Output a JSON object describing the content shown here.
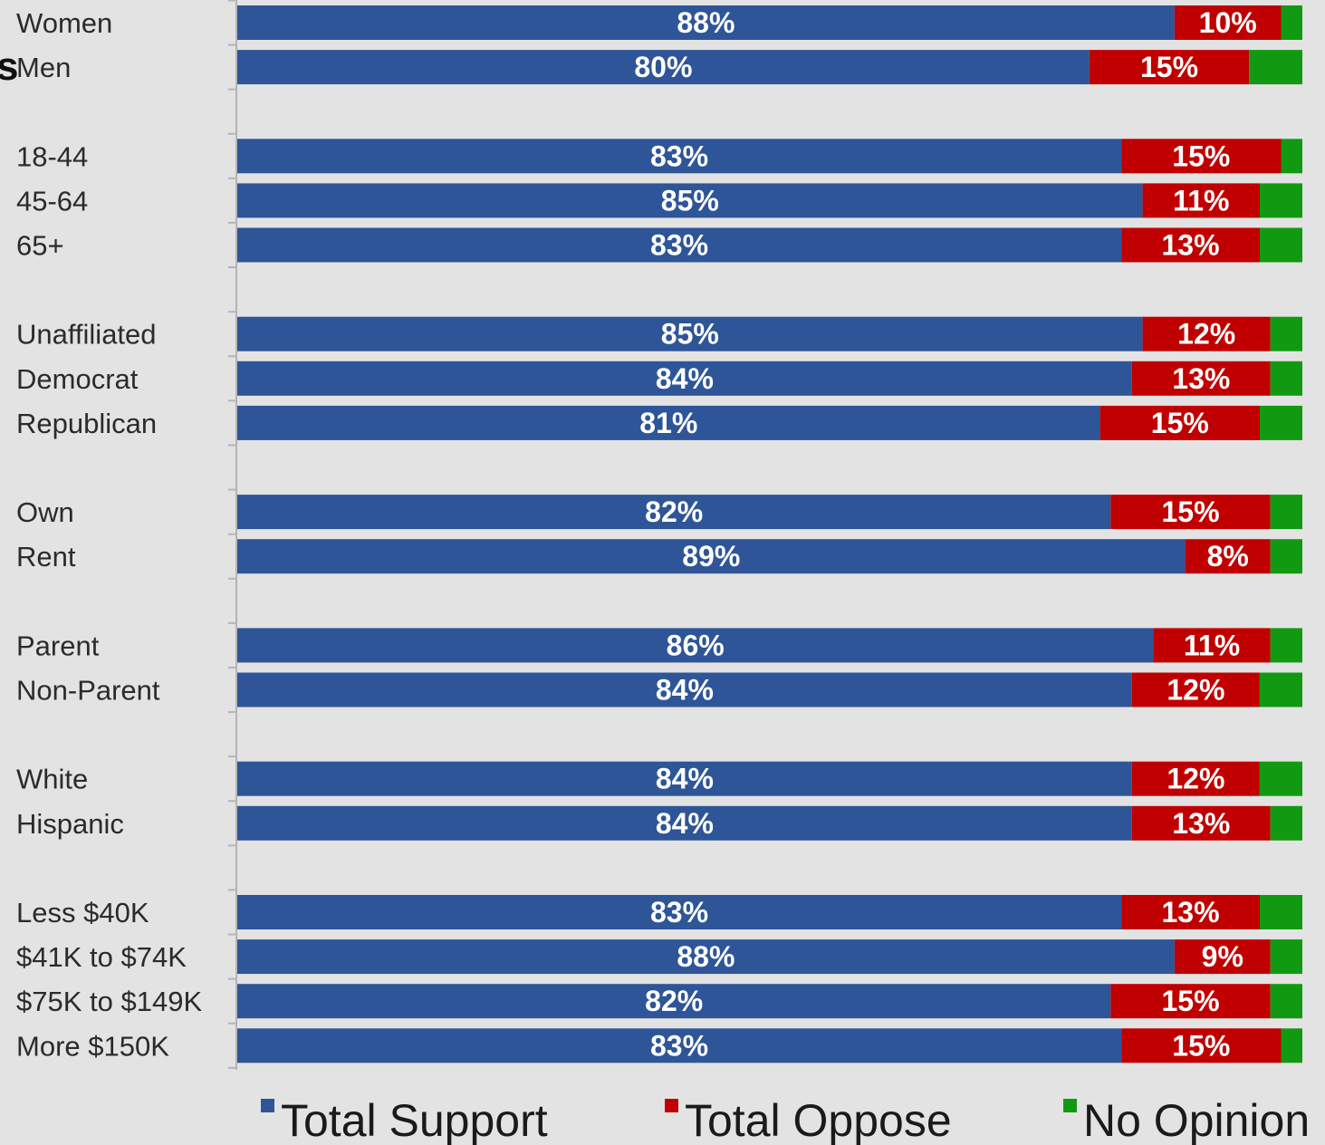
{
  "chart_data": {
    "type": "bar",
    "orientation": "horizontal",
    "stacked": true,
    "cut_off_title_fragment": "s",
    "categories": [
      "Women",
      "Men",
      "18-44",
      "45-64",
      "65+",
      "Unaffiliated",
      "Democrat",
      "Republican",
      "Own",
      "Rent",
      "Parent",
      "Non-Parent",
      "White",
      "Hispanic",
      "Less $40K",
      "$41K to $74K",
      "$75K to $149K",
      "More $150K"
    ],
    "groups": [
      [
        "Women",
        "Men"
      ],
      [
        "18-44",
        "45-64",
        "65+"
      ],
      [
        "Unaffiliated",
        "Democrat",
        "Republican"
      ],
      [
        "Own",
        "Rent"
      ],
      [
        "Parent",
        "Non-Parent"
      ],
      [
        "White",
        "Hispanic"
      ],
      [
        "Less $40K",
        "$41K to $74K",
        "$75K to $149K",
        "More $150K"
      ]
    ],
    "series": [
      {
        "name": "Total Support",
        "color": "#2e5597",
        "values": [
          88,
          80,
          83,
          85,
          83,
          85,
          84,
          81,
          82,
          89,
          86,
          84,
          84,
          84,
          83,
          88,
          82,
          83
        ],
        "labels": [
          "88%",
          "80%",
          "83%",
          "85%",
          "83%",
          "85%",
          "84%",
          "81%",
          "82%",
          "89%",
          "86%",
          "84%",
          "84%",
          "84%",
          "83%",
          "88%",
          "82%",
          "83%"
        ]
      },
      {
        "name": "Total Oppose",
        "color": "#c00000",
        "values": [
          10,
          15,
          15,
          11,
          13,
          12,
          13,
          15,
          15,
          8,
          11,
          12,
          12,
          13,
          13,
          9,
          15,
          15
        ],
        "labels": [
          "10%",
          "15%",
          "15%",
          "11%",
          "13%",
          "12%",
          "13%",
          "15%",
          "15%",
          "8%",
          "11%",
          "12%",
          "12%",
          "13%",
          "13%",
          "9%",
          "15%",
          "15%"
        ]
      },
      {
        "name": "No Opinion",
        "color": "#119a11",
        "values": [
          2,
          5,
          2,
          4,
          4,
          3,
          3,
          4,
          3,
          3,
          3,
          4,
          4,
          3,
          4,
          3,
          3,
          2
        ],
        "labels": []
      }
    ],
    "xlim": [
      0,
      100
    ],
    "grid": false,
    "legend_position": "bottom"
  }
}
